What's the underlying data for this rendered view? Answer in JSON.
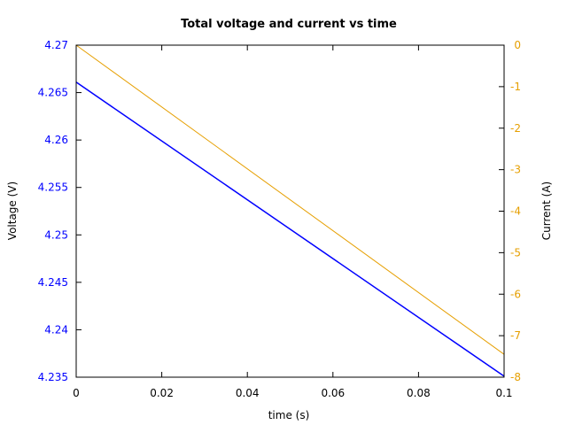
{
  "chart_data": {
    "type": "line",
    "title": "Total voltage and current vs time",
    "xlabel": "time (s)",
    "ylabel_left": "Voltage (V)",
    "ylabel_right": "Current (A)",
    "xlim": [
      0,
      0.1
    ],
    "ylim_left": [
      4.235,
      4.27
    ],
    "ylim_right": [
      -8,
      0
    ],
    "x_ticks": [
      "0",
      "0.02",
      "0.04",
      "0.06",
      "0.08",
      "0.1"
    ],
    "y_left_ticks": [
      "4.235",
      "4.24",
      "4.245",
      "4.25",
      "4.255",
      "4.26",
      "4.265",
      "4.27"
    ],
    "y_right_ticks": [
      "-8",
      "-7",
      "-6",
      "-5",
      "-4",
      "-3",
      "-2",
      "-1",
      "0"
    ],
    "grid": false,
    "series": [
      {
        "axis": "left",
        "color": "#0000ff",
        "x": [
          0,
          0.1
        ],
        "values": [
          4.2661,
          4.2351
        ]
      },
      {
        "axis": "right",
        "color": "#e69f00",
        "x": [
          0,
          0.1
        ],
        "values": [
          0,
          -7.45
        ]
      }
    ],
    "colors": {
      "left_axis": "#0000ff",
      "right_axis": "#e69f00"
    }
  }
}
